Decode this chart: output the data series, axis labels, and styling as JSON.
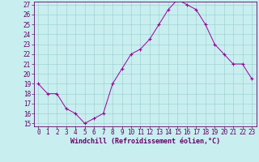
{
  "x": [
    0,
    1,
    2,
    3,
    4,
    5,
    6,
    7,
    8,
    9,
    10,
    11,
    12,
    13,
    14,
    15,
    16,
    17,
    18,
    19,
    20,
    21,
    22,
    23
  ],
  "y": [
    19,
    18,
    18,
    16.5,
    16,
    15,
    15.5,
    16,
    19,
    20.5,
    22,
    22.5,
    23.5,
    25,
    26.5,
    27.5,
    27,
    26.5,
    25,
    23,
    22,
    21,
    21,
    19.5
  ],
  "line_color": "#990099",
  "marker": "+",
  "bg_color": "#c8eef0",
  "grid_color": "#99cccc",
  "xlabel": "Windchill (Refroidissement éolien,°C)",
  "xlabel_color": "#660066",
  "tick_color": "#660066",
  "ylim_min": 15,
  "ylim_max": 27,
  "yticks": [
    15,
    16,
    17,
    18,
    19,
    20,
    21,
    22,
    23,
    24,
    25,
    26,
    27
  ],
  "xticks": [
    0,
    1,
    2,
    3,
    4,
    5,
    6,
    7,
    8,
    9,
    10,
    11,
    12,
    13,
    14,
    15,
    16,
    17,
    18,
    19,
    20,
    21,
    22,
    23
  ],
  "xtick_labels": [
    "0",
    "1",
    "2",
    "3",
    "4",
    "5",
    "6",
    "7",
    "8",
    "9",
    "10",
    "11",
    "12",
    "13",
    "14",
    "15",
    "16",
    "17",
    "18",
    "19",
    "20",
    "21",
    "22",
    "23"
  ],
  "axis_line_color": "#660066",
  "tick_fontsize": 5.5,
  "xlabel_fontsize": 6.0,
  "figsize": [
    3.2,
    2.0
  ],
  "dpi": 100
}
